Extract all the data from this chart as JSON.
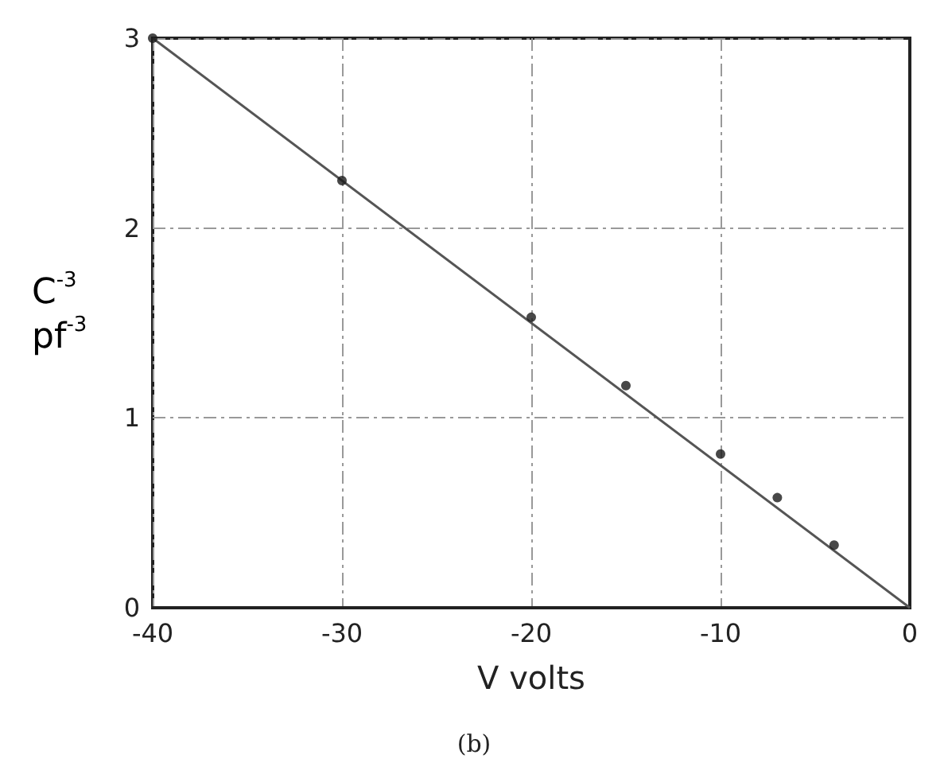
{
  "chart_data": {
    "type": "scatter",
    "xlabel": "V volts",
    "ylabel": "C$^{-3}$ pf$^{-3}$",
    "annotations": [
      "(b)"
    ],
    "xlim": [
      -40,
      0
    ],
    "xticks": [
      -40,
      -30,
      -20,
      -10,
      0
    ],
    "ylim": [
      0,
      3
    ],
    "yticks": [
      0,
      1,
      2,
      3
    ],
    "grid": true,
    "marker": "circle",
    "series": [
      {
        "color": "#1a1a1a",
        "x": [
          -40,
          -30,
          -20,
          -15,
          -10,
          -7,
          -4
        ],
        "values": [
          3,
          2.25,
          1.53,
          1.17,
          0.81,
          0.58,
          0.33
        ]
      },
      {
        "type": "line",
        "color": "#555555",
        "x": [
          -40,
          0
        ],
        "values": [
          3,
          0
        ],
        "marker": "none",
        "line_style": "solid"
      }
    ]
  }
}
